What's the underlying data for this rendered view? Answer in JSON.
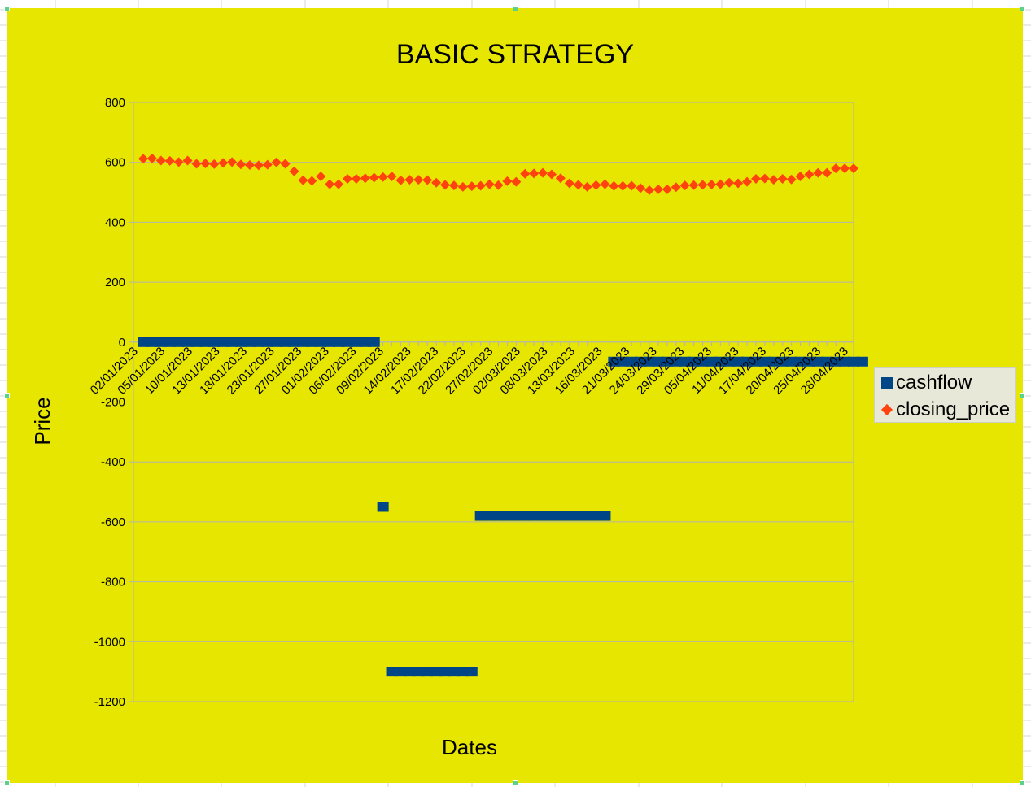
{
  "chart_data": {
    "type": "scatter",
    "title": "BASIC STRATEGY",
    "xlabel": "Dates",
    "ylabel": "Price",
    "ylim": [
      -1200,
      800
    ],
    "yticks": [
      "800",
      "600",
      "400",
      "200",
      "0",
      "-200",
      "-400",
      "-600",
      "-800",
      "-1000",
      "-1200"
    ],
    "x_tick_labels": [
      "02/01/2023",
      "05/01/2023",
      "10/01/2023",
      "13/01/2023",
      "18/01/2023",
      "23/01/2023",
      "27/01/2023",
      "01/02/2023",
      "06/02/2023",
      "09/02/2023",
      "14/02/2023",
      "17/02/2023",
      "22/02/2023",
      "27/02/2023",
      "02/03/2023",
      "08/03/2023",
      "13/03/2023",
      "16/03/2023",
      "21/03/2023",
      "24/03/2023",
      "29/03/2023",
      "05/04/2023",
      "11/04/2023",
      "17/04/2023",
      "20/04/2023",
      "25/04/2023",
      "28/04/2023"
    ],
    "num_points": 81,
    "grid": true,
    "legend_position": "right",
    "series": [
      {
        "name": "cashflow",
        "marker": "square",
        "color": "#004586",
        "values": [
          0,
          0,
          0,
          0,
          0,
          0,
          0,
          0,
          0,
          0,
          0,
          0,
          0,
          0,
          0,
          0,
          0,
          0,
          0,
          0,
          0,
          0,
          0,
          0,
          0,
          0,
          0,
          -550,
          -1100,
          -1100,
          -1100,
          -1100,
          -1100,
          -1100,
          -1100,
          -1100,
          -1100,
          -1100,
          -580,
          -580,
          -580,
          -580,
          -580,
          -580,
          -580,
          -580,
          -580,
          -580,
          -580,
          -580,
          -580,
          -580,
          -580,
          -65,
          -65,
          -65,
          -65,
          -65,
          -65,
          -65,
          -65,
          -65,
          -65,
          -65,
          -65,
          -65,
          -65,
          -65,
          -65,
          -65,
          -65,
          -65,
          -65,
          -65,
          -65,
          -65,
          -65,
          -65,
          -65,
          -65,
          -65,
          -65
        ]
      },
      {
        "name": "closing_price",
        "marker": "diamond",
        "color": "#ff420e",
        "values": [
          612,
          613,
          606,
          605,
          601,
          606,
          595,
          596,
          594,
          598,
          601,
          593,
          591,
          590,
          592,
          600,
          595,
          570,
          540,
          538,
          553,
          527,
          527,
          545,
          545,
          547,
          549,
          551,
          553,
          540,
          542,
          542,
          541,
          532,
          525,
          523,
          518,
          520,
          522,
          527,
          524,
          537,
          535,
          562,
          563,
          565,
          560,
          547,
          530,
          525,
          518,
          524,
          527,
          521,
          521,
          522,
          514,
          507,
          510,
          510,
          517,
          523,
          524,
          525,
          526,
          527,
          532,
          530,
          535,
          545,
          546,
          542,
          545,
          543,
          553,
          560,
          565,
          565,
          580,
          580,
          580
        ]
      }
    ]
  },
  "colors": {
    "background": "#e6e600",
    "grid": "#b3b3b3",
    "cashflow": "#004586",
    "closing_price": "#ff420e"
  }
}
